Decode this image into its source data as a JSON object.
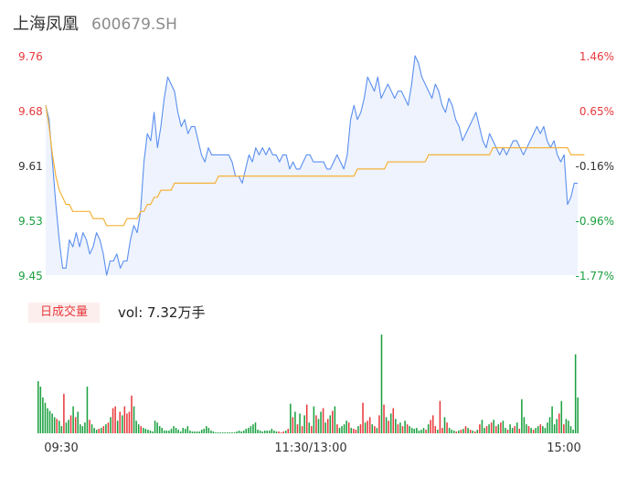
{
  "header": {
    "name": "上海凤凰",
    "code": "600679.SH"
  },
  "volume": {
    "tag": "日成交量",
    "text": "vol: 7.32万手"
  },
  "colors": {
    "price_line": "#5b8ff0",
    "avg_line": "#f5b23a",
    "area_fill": "#eef3fd",
    "up": "#e8393c",
    "down": "#1aa040",
    "neutral": "#333333"
  },
  "chart_data": [
    {
      "type": "line",
      "title": "",
      "x_ticks": [
        "09:30",
        "11:30/13:00",
        "15:00"
      ],
      "y_ticks_left": [
        "9.76",
        "9.68",
        "9.61",
        "9.53",
        "9.45"
      ],
      "y_ticks_right": [
        "1.46%",
        "0.65%",
        "-0.16%",
        "-0.96%",
        "-1.77%"
      ],
      "ylim": [
        9.45,
        9.76
      ],
      "prev_close": 9.625,
      "series": [
        {
          "key": "price",
          "values": [
            9.69,
            9.67,
            9.61,
            9.55,
            9.5,
            9.46,
            9.46,
            9.5,
            9.49,
            9.51,
            9.49,
            9.51,
            9.5,
            9.48,
            9.49,
            9.51,
            9.5,
            9.48,
            9.45,
            9.47,
            9.47,
            9.48,
            9.46,
            9.47,
            9.47,
            9.5,
            9.52,
            9.51,
            9.54,
            9.61,
            9.65,
            9.64,
            9.68,
            9.63,
            9.66,
            9.7,
            9.73,
            9.72,
            9.71,
            9.68,
            9.66,
            9.67,
            9.65,
            9.66,
            9.66,
            9.64,
            9.62,
            9.61,
            9.63,
            9.62,
            9.62,
            9.62,
            9.62,
            9.62,
            9.62,
            9.61,
            9.59,
            9.59,
            9.58,
            9.6,
            9.62,
            9.61,
            9.63,
            9.62,
            9.63,
            9.62,
            9.63,
            9.62,
            9.62,
            9.61,
            9.62,
            9.62,
            9.6,
            9.61,
            9.6,
            9.6,
            9.61,
            9.62,
            9.62,
            9.61,
            9.61,
            9.61,
            9.61,
            9.6,
            9.6,
            9.61,
            9.62,
            9.61,
            9.6,
            9.62,
            9.67,
            9.69,
            9.67,
            9.68,
            9.7,
            9.73,
            9.72,
            9.71,
            9.73,
            9.7,
            9.71,
            9.72,
            9.71,
            9.7,
            9.71,
            9.71,
            9.7,
            9.69,
            9.72,
            9.76,
            9.75,
            9.73,
            9.72,
            9.71,
            9.7,
            9.72,
            9.71,
            9.69,
            9.68,
            9.7,
            9.69,
            9.67,
            9.66,
            9.64,
            9.65,
            9.66,
            9.67,
            9.68,
            9.66,
            9.64,
            9.63,
            9.65,
            9.64,
            9.63,
            9.62,
            9.63,
            9.62,
            9.63,
            9.64,
            9.64,
            9.63,
            9.62,
            9.63,
            9.64,
            9.65,
            9.66,
            9.65,
            9.66,
            9.64,
            9.63,
            9.64,
            9.62,
            9.61,
            9.62,
            9.55,
            9.56,
            9.58,
            9.58
          ],
          "color": "#5b8ff0"
        },
        {
          "key": "avg",
          "values": [
            9.69,
            9.66,
            9.62,
            9.59,
            9.57,
            9.56,
            9.55,
            9.55,
            9.54,
            9.54,
            9.54,
            9.54,
            9.54,
            9.54,
            9.53,
            9.53,
            9.53,
            9.53,
            9.52,
            9.52,
            9.52,
            9.52,
            9.52,
            9.52,
            9.53,
            9.53,
            9.53,
            9.53,
            9.54,
            9.54,
            9.55,
            9.55,
            9.56,
            9.56,
            9.57,
            9.57,
            9.57,
            9.57,
            9.58,
            9.58,
            9.58,
            9.58,
            9.58,
            9.58,
            9.58,
            9.58,
            9.58,
            9.58,
            9.58,
            9.58,
            9.58,
            9.59,
            9.59,
            9.59,
            9.59,
            9.59,
            9.59,
            9.59,
            9.59,
            9.59,
            9.59,
            9.59,
            9.59,
            9.59,
            9.59,
            9.59,
            9.59,
            9.59,
            9.59,
            9.59,
            9.59,
            9.59,
            9.59,
            9.59,
            9.59,
            9.59,
            9.59,
            9.59,
            9.59,
            9.59,
            9.59,
            9.59,
            9.59,
            9.59,
            9.59,
            9.59,
            9.59,
            9.59,
            9.59,
            9.59,
            9.59,
            9.59,
            9.6,
            9.6,
            9.6,
            9.6,
            9.6,
            9.6,
            9.6,
            9.6,
            9.6,
            9.61,
            9.61,
            9.61,
            9.61,
            9.61,
            9.61,
            9.61,
            9.61,
            9.61,
            9.61,
            9.61,
            9.61,
            9.62,
            9.62,
            9.62,
            9.62,
            9.62,
            9.62,
            9.62,
            9.62,
            9.62,
            9.62,
            9.62,
            9.62,
            9.62,
            9.62,
            9.62,
            9.62,
            9.62,
            9.62,
            9.62,
            9.63,
            9.63,
            9.63,
            9.63,
            9.63,
            9.63,
            9.63,
            9.63,
            9.63,
            9.63,
            9.63,
            9.63,
            9.63,
            9.63,
            9.63,
            9.63,
            9.63,
            9.63,
            9.63,
            9.63,
            9.63,
            9.63,
            9.63,
            9.62,
            9.62,
            9.62,
            9.62,
            9.62
          ],
          "color": "#f5b23a"
        }
      ]
    },
    {
      "type": "bar",
      "title": "",
      "volumes": [
        58,
        52,
        40,
        34,
        28,
        25,
        22,
        18,
        16,
        14,
        8,
        44,
        12,
        15,
        20,
        30,
        18,
        24,
        10,
        8,
        12,
        52,
        15,
        10,
        6,
        4,
        5,
        6,
        8,
        10,
        12,
        18,
        28,
        30,
        14,
        24,
        20,
        30,
        22,
        24,
        42,
        30,
        14,
        10,
        8,
        6,
        5,
        4,
        3,
        2,
        14,
        12,
        8,
        6,
        3,
        3,
        3,
        5,
        8,
        6,
        4,
        2,
        6,
        5,
        8,
        3,
        2,
        2,
        2,
        2,
        4,
        5,
        8,
        6,
        3,
        2,
        1,
        1,
        1,
        1,
        1,
        1,
        1,
        1,
        1,
        2,
        3,
        2,
        3,
        5,
        6,
        8,
        10,
        12,
        4,
        3,
        2,
        3,
        3,
        3,
        5,
        3,
        2,
        2,
        1,
        2,
        3,
        5,
        33,
        18,
        24,
        10,
        22,
        8,
        20,
        32,
        12,
        8,
        30,
        20,
        16,
        24,
        28,
        12,
        16,
        20,
        25,
        30,
        10,
        6,
        8,
        10,
        14,
        12,
        6,
        5,
        4,
        8,
        10,
        34,
        12,
        14,
        18,
        10,
        8,
        6,
        20,
        110,
        32,
        18,
        14,
        22,
        28,
        16,
        10,
        12,
        8,
        14,
        10,
        8,
        6,
        5,
        6,
        3,
        4,
        6,
        4,
        10,
        15,
        20,
        8,
        4,
        36,
        6,
        18,
        12,
        6,
        4,
        3,
        2,
        3,
        4,
        5,
        8,
        6,
        4,
        3,
        2,
        4,
        10,
        15,
        6,
        8,
        10,
        12,
        15,
        8,
        10,
        12,
        14,
        6,
        4,
        10,
        6,
        8,
        12,
        5,
        38,
        18,
        10,
        8,
        6,
        4,
        6,
        8,
        10,
        8,
        6,
        12,
        18,
        30,
        10,
        16,
        22,
        36,
        10,
        16,
        14,
        8,
        4,
        88,
        40
      ],
      "colors": [
        "g",
        "g",
        "g",
        "g",
        "g",
        "g",
        "g",
        "g",
        "r",
        "g",
        "g",
        "r",
        "g",
        "g",
        "r",
        "g",
        "r",
        "g",
        "g",
        "g",
        "g",
        "g",
        "r",
        "g",
        "g",
        "g",
        "r",
        "g",
        "r",
        "g",
        "r",
        "g",
        "r",
        "r",
        "g",
        "r",
        "g",
        "r",
        "r",
        "r",
        "r",
        "g",
        "g",
        "g",
        "r",
        "g",
        "g",
        "g",
        "g",
        "g",
        "g",
        "g",
        "g",
        "g",
        "g",
        "g",
        "g",
        "g",
        "g",
        "g",
        "g",
        "g",
        "g",
        "g",
        "g",
        "g",
        "g",
        "g",
        "g",
        "g",
        "g",
        "g",
        "g",
        "g",
        "g",
        "g",
        "g",
        "g",
        "g",
        "g",
        "g",
        "g",
        "g",
        "g",
        "g",
        "g",
        "g",
        "g",
        "g",
        "g",
        "g",
        "g",
        "g",
        "g",
        "g",
        "g",
        "g",
        "g",
        "g",
        "g",
        "g",
        "g",
        "g",
        "r",
        "r",
        "r",
        "g",
        "r",
        "g",
        "r",
        "g",
        "r",
        "g",
        "r",
        "g",
        "r",
        "g",
        "r",
        "g",
        "r",
        "g",
        "g",
        "r",
        "g",
        "r",
        "g",
        "r",
        "g",
        "r",
        "g",
        "g",
        "g",
        "g",
        "r",
        "g",
        "r",
        "r",
        "g",
        "r",
        "r",
        "g",
        "r",
        "r",
        "g",
        "r",
        "g",
        "r",
        "g",
        "r",
        "g",
        "r",
        "g",
        "r",
        "g",
        "r",
        "g",
        "r",
        "g",
        "r",
        "g",
        "g",
        "g",
        "g",
        "g",
        "g",
        "g",
        "r",
        "g",
        "r",
        "r",
        "r",
        "g",
        "r",
        "r",
        "g",
        "r",
        "g",
        "g",
        "g",
        "r",
        "g",
        "r",
        "g",
        "r",
        "g",
        "r",
        "g",
        "r",
        "g",
        "r",
        "g",
        "g",
        "r",
        "g",
        "r",
        "g",
        "r",
        "g",
        "r",
        "g",
        "g",
        "r",
        "g",
        "g",
        "r",
        "g",
        "r",
        "g",
        "g",
        "g",
        "r",
        "g",
        "r",
        "g",
        "g",
        "r",
        "g",
        "g",
        "g",
        "g",
        "g",
        "g",
        "g",
        "r",
        "g",
        "r",
        "g",
        "g",
        "g",
        "g",
        "g",
        "g",
        "g",
        "g",
        "g",
        "g",
        "g",
        "g",
        "g",
        "g",
        "g",
        "g",
        "g"
      ],
      "ylim": [
        0,
        110
      ]
    }
  ]
}
